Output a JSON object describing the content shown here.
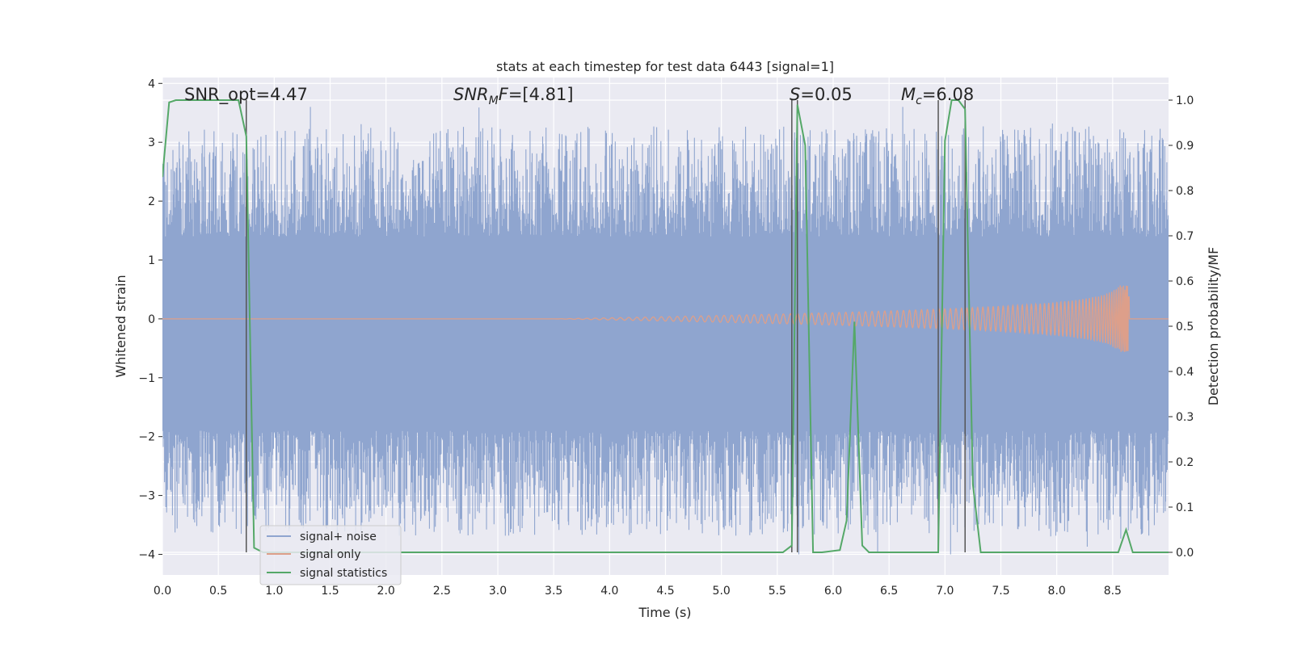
{
  "chart_data": {
    "type": "line",
    "title": "stats at each timestep for test data 6443 [signal=1]",
    "xlabel": "Time (s)",
    "ylabel": "Whitened strain",
    "y2label": "Detection probability/MF",
    "xlim": [
      0.0,
      9.0
    ],
    "ylim": [
      -4.35,
      4.1
    ],
    "y2lim": [
      -0.05,
      1.05
    ],
    "xticks": [
      "0.0",
      "0.5",
      "1.0",
      "1.5",
      "2.0",
      "2.5",
      "3.0",
      "3.5",
      "4.0",
      "4.5",
      "5.0",
      "5.5",
      "6.0",
      "6.5",
      "7.0",
      "7.5",
      "8.0",
      "8.5"
    ],
    "yticks": [
      "4",
      "3",
      "2",
      "1",
      "0",
      "−1",
      "−2",
      "−3",
      "−4"
    ],
    "y2ticks": [
      "1.0",
      "0.9",
      "0.8",
      "0.7",
      "0.6",
      "0.5",
      "0.4",
      "0.3",
      "0.2",
      "0.1",
      "0.0"
    ],
    "grid": true,
    "legend_position": "lower-left",
    "annotations": {
      "snr_opt": "SNR_opt=4.47",
      "snr_mf_italic": "SNR",
      "snr_mf_sub": "M",
      "snr_mf_italic2": "F",
      "snr_mf_value": "=[4.81]",
      "s_italic": "S",
      "s_value": "=0.05",
      "mc_italic": "M",
      "mc_sub": "c",
      "mc_value": "=6.08"
    },
    "vertical_lines_x": [
      0.75,
      5.63,
      5.68,
      6.94,
      7.18
    ],
    "series": [
      {
        "name": "signal+ noise",
        "color": "#8fa5cf",
        "axis": "left",
        "typical_range": [
          -1.9,
          1.4
        ],
        "peak_range": [
          -4.0,
          3.6
        ]
      },
      {
        "name": "signal only",
        "color": "#dd9f8a",
        "axis": "left",
        "start_x": 3.5,
        "end_x": 8.65,
        "max_amplitude": 0.57
      },
      {
        "name": "signal statistics",
        "color": "#55a868",
        "axis": "right",
        "x": [
          0.0,
          0.06,
          0.12,
          0.2,
          0.3,
          0.4,
          0.5,
          0.6,
          0.68,
          0.75,
          0.82,
          0.9,
          1.0,
          2.0,
          3.0,
          4.0,
          5.0,
          5.55,
          5.63,
          5.68,
          5.75,
          5.82,
          5.9,
          6.06,
          6.12,
          6.19,
          6.26,
          6.32,
          6.38,
          6.5,
          6.94,
          7.0,
          7.06,
          7.12,
          7.18,
          7.25,
          7.32,
          7.4,
          8.0,
          8.55,
          8.62,
          8.68,
          8.75,
          9.0
        ],
        "y": [
          0.83,
          0.995,
          1.0,
          1.0,
          1.0,
          1.0,
          1.0,
          1.0,
          1.0,
          0.92,
          0.01,
          0.0,
          0.0,
          0.0,
          0.0,
          0.0,
          0.0,
          0.0,
          0.015,
          0.99,
          0.9,
          0.0,
          0.0,
          0.005,
          0.07,
          0.51,
          0.015,
          0.0,
          0.0,
          0.0,
          0.0,
          0.91,
          1.0,
          1.0,
          0.98,
          0.15,
          0.0,
          0.0,
          0.0,
          0.0,
          0.05,
          0.0,
          0.0,
          0.0
        ]
      }
    ]
  }
}
